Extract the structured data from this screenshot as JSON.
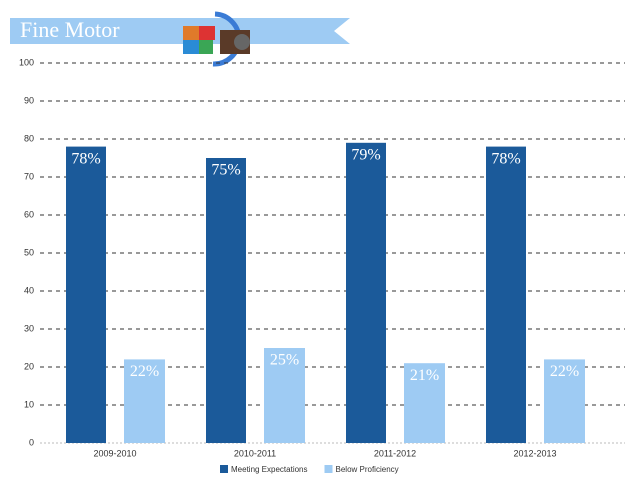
{
  "chart_data": {
    "type": "bar",
    "title": "Fine Motor",
    "categories": [
      "2009-2010",
      "2010-2011",
      "2011-2012",
      "2012-2013"
    ],
    "series": [
      {
        "name": "Meeting Expectations",
        "color": "#1b5a9a",
        "values": [
          78,
          75,
          79,
          78
        ],
        "value_labels": [
          "78%",
          "75%",
          "79%",
          "78%"
        ]
      },
      {
        "name": "Below Proficiency",
        "color": "#9ecbf3",
        "values": [
          22,
          25,
          21,
          22
        ],
        "value_labels": [
          "22%",
          "25%",
          "21%",
          "22%"
        ]
      }
    ],
    "ylim": [
      0,
      100
    ],
    "yticks": [
      0,
      10,
      20,
      30,
      40,
      50,
      60,
      70,
      80,
      90,
      100
    ],
    "grid": true,
    "legend": "bottom"
  }
}
